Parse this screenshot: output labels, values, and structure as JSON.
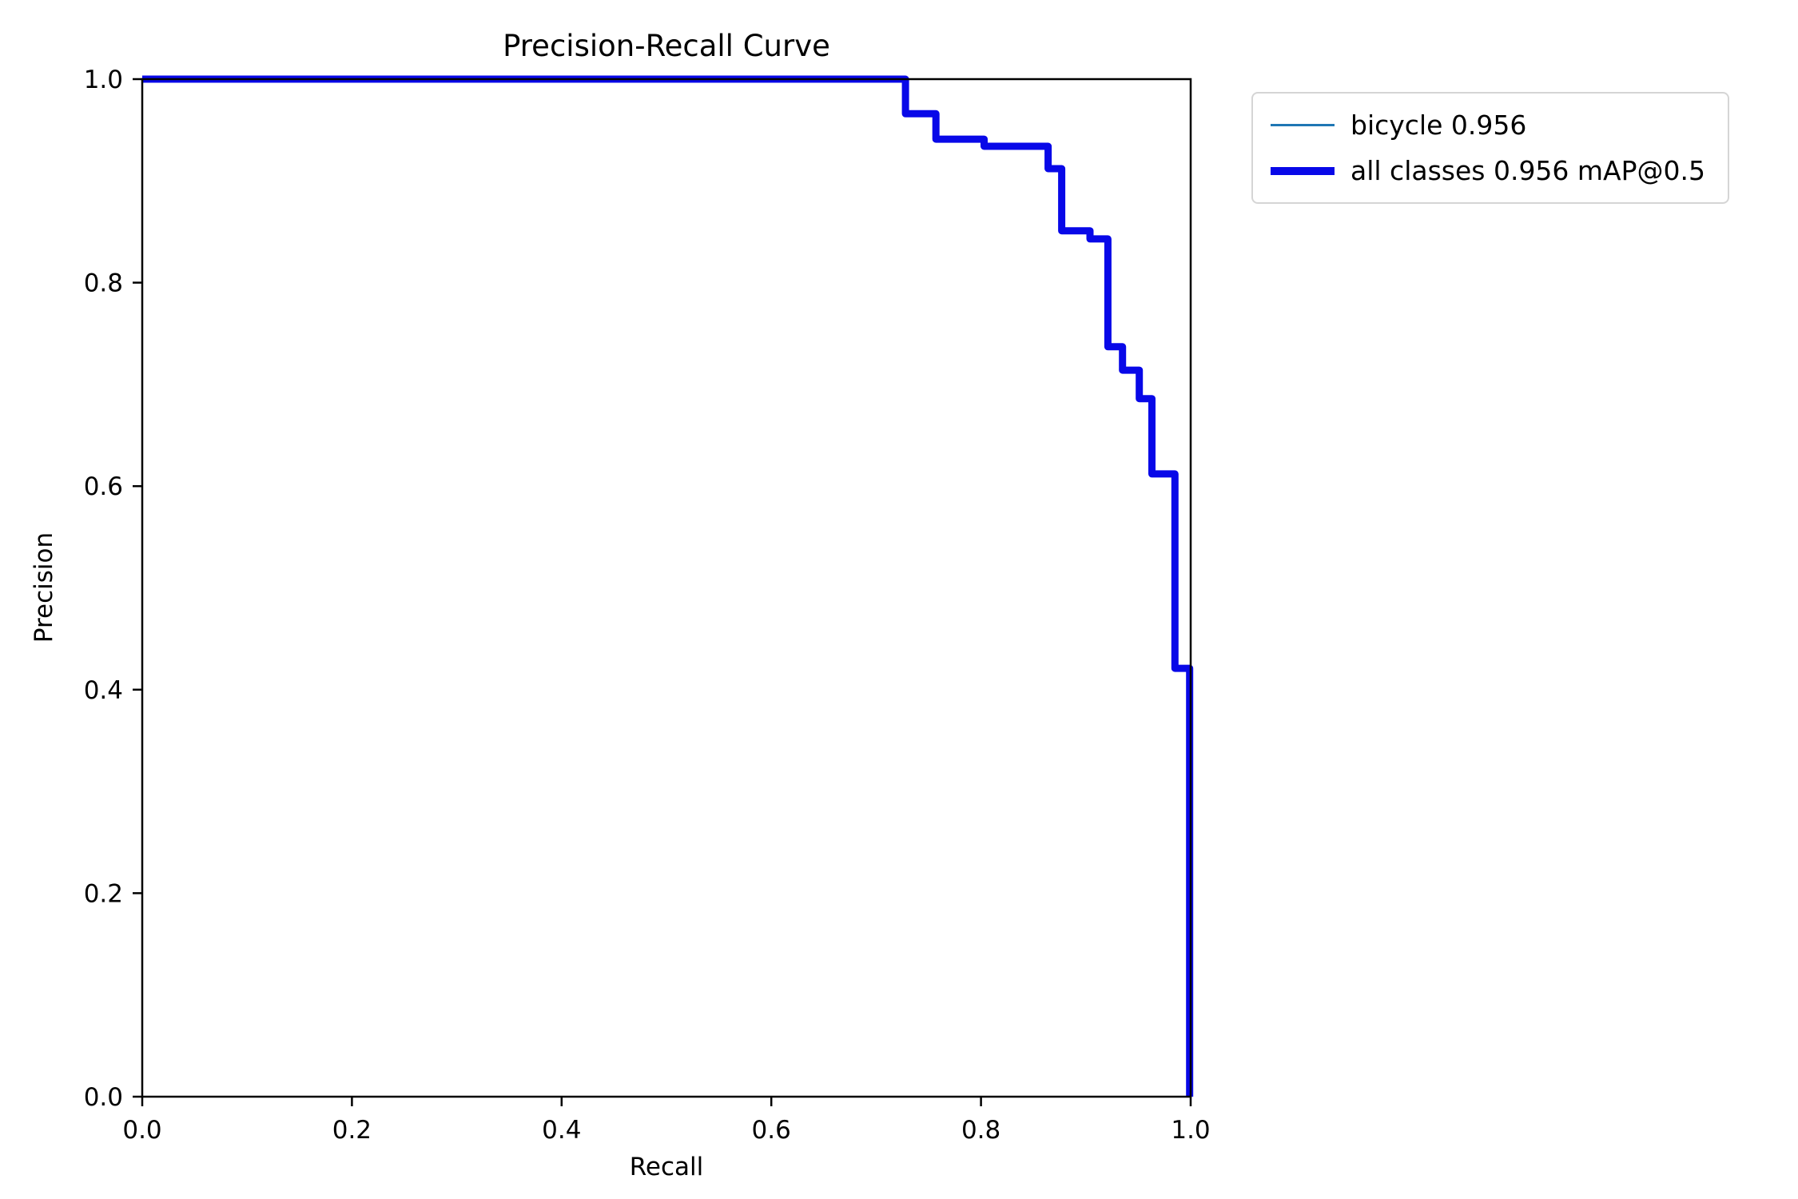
{
  "chart_data": {
    "type": "line",
    "title": "Precision-Recall Curve",
    "xlabel": "Recall",
    "ylabel": "Precision",
    "xlim": [
      0.0,
      1.0
    ],
    "ylim": [
      0.0,
      1.0
    ],
    "xticks": [
      0.0,
      0.2,
      0.4,
      0.6,
      0.8,
      1.0
    ],
    "yticks": [
      0.0,
      0.2,
      0.4,
      0.6,
      0.8,
      1.0
    ],
    "grid": false,
    "legend_position": "outside upper right",
    "points": [
      [
        0.0,
        1.0
      ],
      [
        0.728,
        1.0
      ],
      [
        0.728,
        0.966
      ],
      [
        0.757,
        0.966
      ],
      [
        0.757,
        0.941
      ],
      [
        0.803,
        0.941
      ],
      [
        0.803,
        0.934
      ],
      [
        0.864,
        0.934
      ],
      [
        0.864,
        0.912
      ],
      [
        0.877,
        0.912
      ],
      [
        0.877,
        0.851
      ],
      [
        0.904,
        0.851
      ],
      [
        0.904,
        0.843
      ],
      [
        0.921,
        0.843
      ],
      [
        0.921,
        0.737
      ],
      [
        0.935,
        0.737
      ],
      [
        0.935,
        0.714
      ],
      [
        0.951,
        0.714
      ],
      [
        0.951,
        0.686
      ],
      [
        0.963,
        0.686
      ],
      [
        0.963,
        0.612
      ],
      [
        0.985,
        0.612
      ],
      [
        0.985,
        0.421
      ],
      [
        0.999,
        0.421
      ],
      [
        0.999,
        0.0
      ]
    ],
    "series": [
      {
        "name": "bicycle",
        "label": "bicycle 0.956",
        "ap": 0.956,
        "color": "#1f77b4",
        "linewidth": "thin"
      },
      {
        "name": "all classes",
        "label": "all classes 0.956 mAP@0.5",
        "map": 0.956,
        "color": "#0808e8",
        "linewidth": "thick"
      }
    ],
    "axis_color": "#000000"
  }
}
